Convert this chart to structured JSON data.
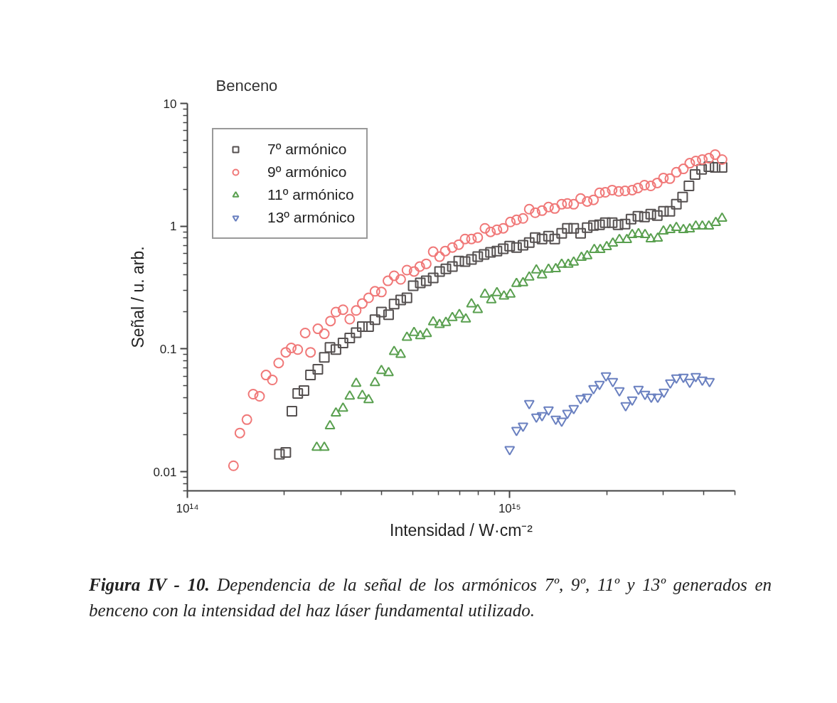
{
  "chart_data": {
    "type": "scatter",
    "title": "Benceno",
    "xlabel": "Intensidad / W·cm⁻²",
    "ylabel": "Señal / u. arb.",
    "log": "xy",
    "grid": false,
    "legend": "top left",
    "xlim": [
      100000000000000.0,
      5000000000000000.0
    ],
    "xticks": [
      {
        "value": 100000000000000.0,
        "label": "10¹⁴"
      },
      {
        "value": 1000000000000000.0,
        "label": "10¹⁵"
      }
    ],
    "ylim": [
      0.007,
      10
    ],
    "yticks": [
      0.01,
      0.1,
      1,
      10
    ],
    "annotations": [
      "Figura IV - 10.",
      "Dependencia de la señal de los armónicos 7º, 9º, 11º y 13º generados en benceno con la intensidad del haz láser fundamental utilizado."
    ],
    "series": [
      {
        "name": "7º armónico",
        "color": "#555050",
        "marker": "square",
        "x": [
          193000000000000.0,
          202000000000000.0,
          211000000000000.0,
          220000000000000.0,
          230000000000000.0,
          241000000000000.0,
          254000000000000.0,
          266000000000000.0,
          277000000000000.0,
          289000000000000.0,
          304000000000000.0,
          319000000000000.0,
          334000000000000.0,
          349000000000000.0,
          365000000000000.0,
          382000000000000.0,
          400000000000000.0,
          421000000000000.0,
          438000000000000.0,
          459000000000000.0,
          480000000000000.0,
          502000000000000.0,
          528000000000000.0,
          551000000000000.0,
          579000000000000.0,
          606000000000000.0,
          634000000000000.0,
          664000000000000.0,
          695000000000000.0,
          727000000000000.0,
          761000000000000.0,
          796000000000000.0,
          833000000000000.0,
          872000000000000.0,
          913000000000000.0,
          955000000000000.0,
          1000000000000000.0,
          1050000000000000.0,
          1100000000000000.0,
          1150000000000000.0,
          1200000000000000.0,
          1260000000000000.0,
          1320000000000000.0,
          1380000000000000.0,
          1450000000000000.0,
          1510000000000000.0,
          1580000000000000.0,
          1660000000000000.0,
          1740000000000000.0,
          1820000000000000.0,
          1900000000000000.0,
          1980000000000000.0,
          2080000000000000.0,
          2170000000000000.0,
          2280000000000000.0,
          2380000000000000.0,
          2500000000000000.0,
          2620000000000000.0,
          2740000000000000.0,
          2870000000000000.0,
          3000000000000000.0,
          3140000000000000.0,
          3290000000000000.0,
          3440000000000000.0,
          3600000000000000.0,
          3760000000000000.0,
          3940000000000000.0,
          4150000000000000.0,
          4340000000000000.0,
          4560000000000000.0
        ],
        "values": [
          0.0139,
          0.0144,
          0.0312,
          0.0435,
          0.0458,
          0.0614,
          0.0683,
          0.0856,
          0.103,
          0.099,
          0.112,
          0.123,
          0.136,
          0.152,
          0.152,
          0.173,
          0.2,
          0.19,
          0.232,
          0.251,
          0.261,
          0.328,
          0.345,
          0.359,
          0.379,
          0.428,
          0.45,
          0.469,
          0.521,
          0.515,
          0.536,
          0.565,
          0.588,
          0.612,
          0.628,
          0.654,
          0.689,
          0.671,
          0.699,
          0.737,
          0.809,
          0.787,
          0.83,
          0.787,
          0.876,
          0.961,
          0.961,
          0.876,
          0.974,
          1.013,
          1.027,
          1.069,
          1.069,
          1.027,
          1.041,
          1.142,
          1.205,
          1.189,
          1.254,
          1.221,
          1.322,
          1.322,
          1.51,
          1.725,
          2.13,
          2.64,
          2.9,
          3.05,
          3.01,
          3.01
        ]
      },
      {
        "name": "9º armónico",
        "color": "#f07878",
        "marker": "circle",
        "x": [
          139000000000000.0,
          145500000000000.0,
          153000000000000.0,
          160000000000000.0,
          167500000000000.0,
          175400000000000.0,
          183500000000000.0,
          192000000000000.0,
          202000000000000.0,
          210000000000000.0,
          220000000000000.0,
          232000000000000.0,
          241000000000000.0,
          254000000000000.0,
          266000000000000.0,
          278000000000000.0,
          289000000000000.0,
          304000000000000.0,
          319000000000000.0,
          334000000000000.0,
          349000000000000.0,
          365000000000000.0,
          382000000000000.0,
          400000000000000.0,
          419000000000000.0,
          438000000000000.0,
          459000000000000.0,
          480000000000000.0,
          505000000000000.0,
          526000000000000.0,
          551000000000000.0,
          579000000000000.0,
          606000000000000.0,
          631000000000000.0,
          664000000000000.0,
          695000000000000.0,
          727000000000000.0,
          761000000000000.0,
          796000000000000.0,
          838000000000000.0,
          872000000000000.0,
          913000000000000.0,
          955000000000000.0,
          1005000000000000.0,
          1050000000000000.0,
          1100000000000000.0,
          1150000000000000.0,
          1200000000000000.0,
          1260000000000000.0,
          1320000000000000.0,
          1380000000000000.0,
          1450000000000000.0,
          1510000000000000.0,
          1580000000000000.0,
          1660000000000000.0,
          1740000000000000.0,
          1820000000000000.0,
          1900000000000000.0,
          1980000000000000.0,
          2080000000000000.0,
          2180000000000000.0,
          2280000000000000.0,
          2400000000000000.0,
          2500000000000000.0,
          2620000000000000.0,
          2740000000000000.0,
          2870000000000000.0,
          3000000000000000.0,
          3140000000000000.0,
          3290000000000000.0,
          3460000000000000.0,
          3620000000000000.0,
          3780000000000000.0,
          3960000000000000.0,
          4150000000000000.0,
          4340000000000000.0,
          4560000000000000.0
        ],
        "values": [
          0.0112,
          0.0207,
          0.0266,
          0.0429,
          0.0412,
          0.0614,
          0.056,
          0.0769,
          0.094,
          0.102,
          0.099,
          0.135,
          0.094,
          0.146,
          0.133,
          0.169,
          0.2,
          0.209,
          0.175,
          0.206,
          0.235,
          0.261,
          0.295,
          0.291,
          0.359,
          0.395,
          0.369,
          0.439,
          0.428,
          0.469,
          0.494,
          0.62,
          0.565,
          0.628,
          0.671,
          0.708,
          0.787,
          0.787,
          0.809,
          0.961,
          0.899,
          0.936,
          0.961,
          1.083,
          1.127,
          1.157,
          1.376,
          1.287,
          1.339,
          1.432,
          1.394,
          1.51,
          1.53,
          1.51,
          1.68,
          1.59,
          1.64,
          1.87,
          1.89,
          1.97,
          1.92,
          1.94,
          1.97,
          2.05,
          2.16,
          2.13,
          2.25,
          2.47,
          2.44,
          2.75,
          2.93,
          3.26,
          3.4,
          3.49,
          3.58,
          3.83,
          3.49
        ]
      },
      {
        "name": "11º armónico",
        "color": "#5aa050",
        "marker": "triangle",
        "x": [
          252000000000000.0,
          266000000000000.0,
          277000000000000.0,
          289000000000000.0,
          304000000000000.0,
          319000000000000.0,
          334000000000000.0,
          349000000000000.0,
          365000000000000.0,
          382000000000000.0,
          400000000000000.0,
          421000000000000.0,
          438000000000000.0,
          459000000000000.0,
          480000000000000.0,
          505000000000000.0,
          528000000000000.0,
          553000000000000.0,
          579000000000000.0,
          606000000000000.0,
          634000000000000.0,
          664000000000000.0,
          698000000000000.0,
          731000000000000.0,
          761000000000000.0,
          796000000000000.0,
          838000000000000.0,
          877000000000000.0,
          913000000000000.0,
          960000000000000.0,
          1005000000000000.0,
          1050000000000000.0,
          1100000000000000.0,
          1150000000000000.0,
          1210000000000000.0,
          1260000000000000.0,
          1320000000000000.0,
          1390000000000000.0,
          1450000000000000.0,
          1520000000000000.0,
          1580000000000000.0,
          1670000000000000.0,
          1740000000000000.0,
          1830000000000000.0,
          1910000000000000.0,
          2000000000000000.0,
          2090000000000000.0,
          2190000000000000.0,
          2310000000000000.0,
          2400000000000000.0,
          2510000000000000.0,
          2630000000000000.0,
          2740000000000000.0,
          2880000000000000.0,
          3000000000000000.0,
          3150000000000000.0,
          3290000000000000.0,
          3460000000000000.0,
          3620000000000000.0,
          3780000000000000.0,
          3960000000000000.0,
          4150000000000000.0,
          4360000000000000.0,
          4560000000000000.0
        ],
        "values": [
          0.0158,
          0.0158,
          0.0236,
          0.03,
          0.0329,
          0.0412,
          0.0524,
          0.0418,
          0.0386,
          0.0531,
          0.0665,
          0.064,
          0.0952,
          0.0903,
          0.124,
          0.136,
          0.128,
          0.133,
          0.166,
          0.158,
          0.164,
          0.18,
          0.19,
          0.175,
          0.232,
          0.209,
          0.279,
          0.251,
          0.287,
          0.269,
          0.279,
          0.341,
          0.345,
          0.384,
          0.439,
          0.4,
          0.445,
          0.45,
          0.488,
          0.488,
          0.508,
          0.557,
          0.573,
          0.645,
          0.645,
          0.68,
          0.727,
          0.777,
          0.777,
          0.852,
          0.865,
          0.852,
          0.787,
          0.798,
          0.911,
          0.936,
          0.974,
          0.936,
          0.948,
          1.0,
          1.0,
          1.0,
          1.069,
          1.157
        ]
      },
      {
        "name": "13º armónico",
        "color": "#6a80c0",
        "marker": "triangle",
        "x": [
          1000000000000000.0,
          1050000000000000.0,
          1100000000000000.0,
          1150000000000000.0,
          1210000000000000.0,
          1260000000000000.0,
          1320000000000000.0,
          1390000000000000.0,
          1450000000000000.0,
          1510000000000000.0,
          1580000000000000.0,
          1660000000000000.0,
          1740000000000000.0,
          1820000000000000.0,
          1900000000000000.0,
          1990000000000000.0,
          2090000000000000.0,
          2190000000000000.0,
          2290000000000000.0,
          2400000000000000.0,
          2510000000000000.0,
          2630000000000000.0,
          2750000000000000.0,
          2880000000000000.0,
          3010000000000000.0,
          3150000000000000.0,
          3290000000000000.0,
          3460000000000000.0,
          3620000000000000.0,
          3780000000000000.0,
          3960000000000000.0,
          4170000000000000.0
        ],
        "values": [
          0.0152,
          0.0218,
          0.0236,
          0.0361,
          0.028,
          0.0288,
          0.032,
          0.0269,
          0.0259,
          0.03,
          0.0329,
          0.0396,
          0.0407,
          0.0477,
          0.0517,
          0.0606,
          0.0545,
          0.0458,
          0.0347,
          0.0386,
          0.0471,
          0.0429,
          0.0407,
          0.0407,
          0.0446,
          0.0531,
          0.0582,
          0.059,
          0.0538,
          0.0598,
          0.056,
          0.0545
        ]
      }
    ]
  }
}
